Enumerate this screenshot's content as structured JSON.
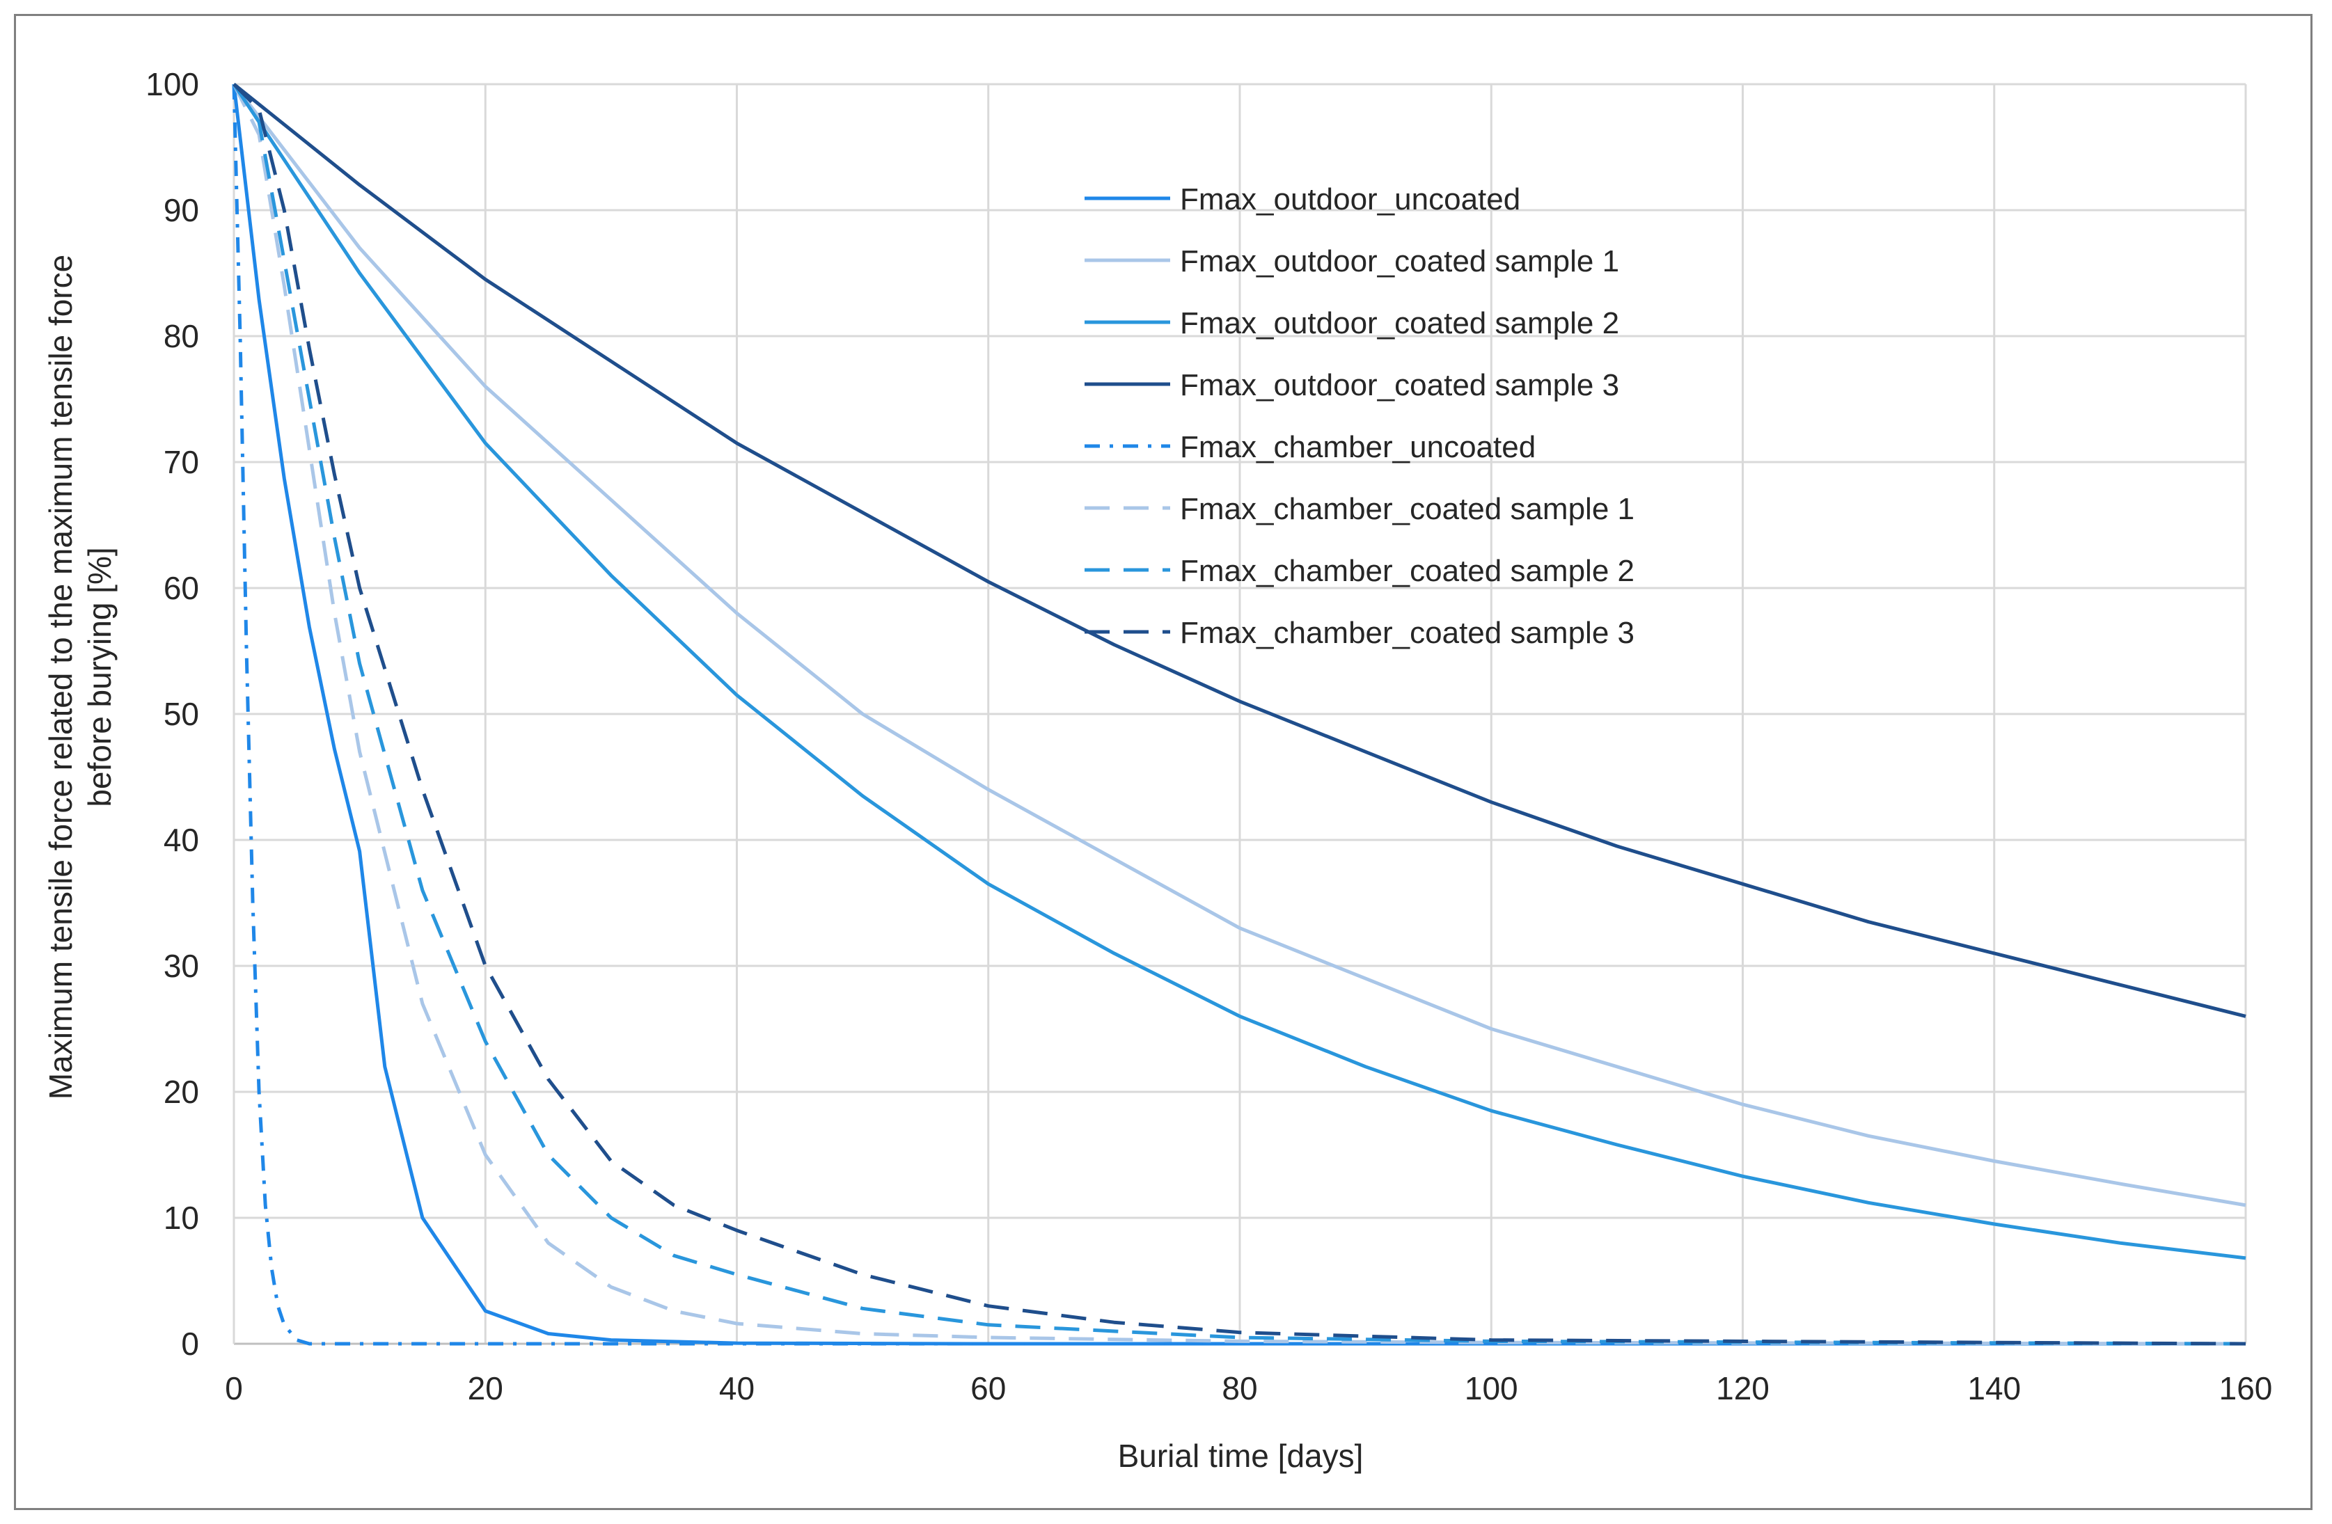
{
  "chart_data": {
    "type": "line",
    "title": "",
    "xlabel": "Burial time [days]",
    "ylabel_lines": [
      "Maximum tensile force related to the maximum tensile force",
      "before burying  [%]"
    ],
    "xlim": [
      0,
      160
    ],
    "ylim": [
      0,
      100
    ],
    "x_ticks": [
      0,
      20,
      40,
      60,
      80,
      100,
      120,
      140,
      160
    ],
    "y_ticks": [
      0,
      10,
      20,
      30,
      40,
      50,
      60,
      70,
      80,
      90,
      100
    ],
    "grid": true,
    "legend_position": "inside-top-right",
    "series": [
      {
        "name": "Fmax_outdoor_uncoated",
        "color": "#1f87e8",
        "dash": "solid",
        "x": [
          0,
          2,
          4,
          6,
          8,
          10,
          12,
          15,
          20,
          25,
          30,
          40,
          60,
          100,
          160
        ],
        "y": [
          100,
          82.9,
          68.7,
          56.9,
          47.2,
          39.1,
          22,
          10,
          2.6,
          0.8,
          0.3,
          0.05,
          0,
          0,
          0
        ]
      },
      {
        "name": "Fmax_outdoor_coated sample 1",
        "color": "#a9c6e8",
        "dash": "solid",
        "x": [
          0,
          10,
          20,
          30,
          40,
          50,
          60,
          70,
          80,
          90,
          100,
          110,
          120,
          130,
          140,
          150,
          160
        ],
        "y": [
          100,
          87,
          76,
          67,
          58,
          50,
          44,
          38.5,
          33,
          29,
          25,
          22,
          19,
          16.5,
          14.5,
          12.7,
          11
        ]
      },
      {
        "name": "Fmax_outdoor_coated sample 2",
        "color": "#2996dc",
        "dash": "solid",
        "x": [
          0,
          10,
          20,
          30,
          40,
          50,
          60,
          70,
          80,
          90,
          100,
          110,
          120,
          130,
          140,
          150,
          160
        ],
        "y": [
          100,
          85,
          71.5,
          61,
          51.5,
          43.5,
          36.5,
          31,
          26,
          22,
          18.5,
          15.8,
          13.3,
          11.2,
          9.5,
          8,
          6.8
        ]
      },
      {
        "name": "Fmax_outdoor_coated sample 3",
        "color": "#1f4e8c",
        "dash": "solid",
        "x": [
          0,
          10,
          20,
          30,
          40,
          50,
          60,
          70,
          80,
          90,
          100,
          110,
          120,
          130,
          140,
          150,
          160
        ],
        "y": [
          100,
          92,
          84.5,
          78,
          71.5,
          66,
          60.5,
          55.5,
          51,
          47,
          43,
          39.5,
          36.5,
          33.5,
          31,
          28.5,
          26
        ]
      },
      {
        "name": "Fmax_chamber_uncoated",
        "color": "#1f87e8",
        "dash": "dashdot",
        "x": [
          0,
          0.5,
          1,
          1.5,
          2,
          2.5,
          3,
          3.5,
          4,
          5,
          6,
          10,
          50,
          160
        ],
        "y": [
          100,
          80,
          55,
          35,
          20,
          11,
          6,
          3,
          1.5,
          0.3,
          0,
          0,
          0,
          0
        ]
      },
      {
        "name": "Fmax_chamber_coated sample 1",
        "color": "#a9c6e8",
        "dash": "dash",
        "x": [
          0,
          2,
          4,
          6,
          8,
          10,
          15,
          20,
          25,
          30,
          35,
          40,
          50,
          60,
          80,
          100,
          160
        ],
        "y": [
          100,
          96,
          84,
          71,
          58,
          47,
          27,
          15,
          8,
          4.5,
          2.6,
          1.6,
          0.8,
          0.5,
          0.2,
          0.1,
          0
        ]
      },
      {
        "name": "Fmax_chamber_coated sample 2",
        "color": "#2996dc",
        "dash": "dash",
        "x": [
          0,
          2,
          4,
          6,
          8,
          10,
          15,
          20,
          25,
          30,
          35,
          40,
          50,
          60,
          80,
          100,
          160
        ],
        "y": [
          100,
          97,
          86,
          75,
          64,
          54,
          36,
          24,
          15,
          10,
          7,
          5.5,
          2.8,
          1.5,
          0.5,
          0.2,
          0
        ]
      },
      {
        "name": "Fmax_chamber_coated sample 3",
        "color": "#1f4e8c",
        "dash": "dash",
        "x": [
          0,
          2,
          4,
          6,
          8,
          10,
          15,
          20,
          25,
          30,
          35,
          40,
          50,
          60,
          70,
          80,
          100,
          160
        ],
        "y": [
          100,
          98,
          90,
          79,
          69,
          60,
          44,
          30,
          21,
          14.5,
          11,
          9,
          5.5,
          3,
          1.7,
          0.9,
          0.3,
          0
        ]
      }
    ]
  }
}
